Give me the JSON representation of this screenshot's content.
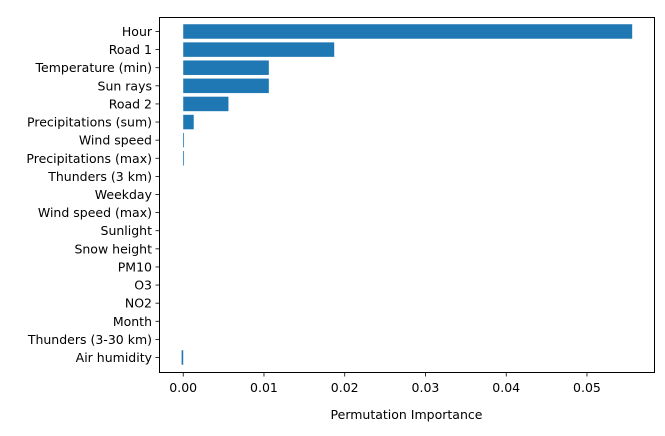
{
  "chart_data": {
    "type": "bar",
    "orientation": "horizontal",
    "title": "",
    "xlabel": "Permutation Importance",
    "ylabel": "",
    "categories": [
      "Hour",
      "Road 1",
      "Temperature (min)",
      "Sun rays",
      "Road 2",
      "Precipitations (sum)",
      "Wind speed",
      "Precipitations (max)",
      "Thunders (3 km)",
      "Weekday",
      "Wind speed (max)",
      "Sunlight",
      "Snow height",
      "PM10",
      "O3",
      "NO2",
      "Month",
      "Thunders (3-30 km)",
      "Air humidity"
    ],
    "values": [
      0.0556,
      0.0187,
      0.0106,
      0.0106,
      0.0056,
      0.0013,
      0.0001,
      0.0001,
      0.0,
      0.0,
      0.0,
      0.0,
      0.0,
      0.0,
      0.0,
      0.0,
      0.0,
      0.0,
      -0.0002
    ],
    "xlim": [
      -0.003,
      0.0583
    ],
    "xticks": [
      0.0,
      0.01,
      0.02,
      0.03,
      0.04,
      0.05
    ],
    "xtick_labels": [
      "0.00",
      "0.01",
      "0.02",
      "0.03",
      "0.04",
      "0.05"
    ],
    "bar_color": "#1f77b4",
    "grid": false,
    "legend": "none"
  }
}
